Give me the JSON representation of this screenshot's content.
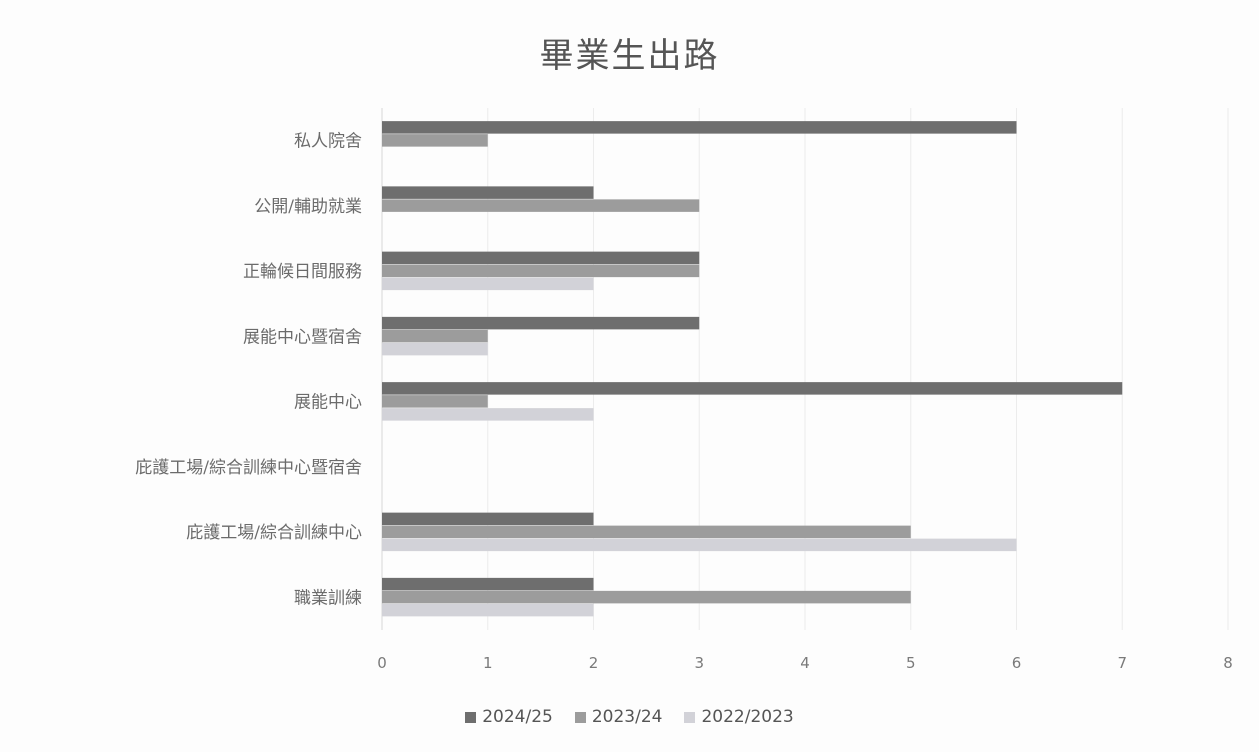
{
  "chart_data": {
    "type": "bar",
    "orientation": "horizontal",
    "title": "畢業生出路",
    "categories": [
      "私人院舍",
      "公開/輔助就業",
      "正輪候日間服務",
      "展能中心暨宿舍",
      "展能中心",
      "庇護工場/綜合訓練中心暨宿舍",
      "庇護工場/綜合訓練中心",
      "職業訓練"
    ],
    "series": [
      {
        "name": "2024/25",
        "color": "#6e6e6e",
        "values": [
          6,
          2,
          3,
          3,
          7,
          0,
          2,
          2
        ]
      },
      {
        "name": "2023/24",
        "color": "#9c9c9c",
        "values": [
          1,
          3,
          3,
          1,
          1,
          0,
          5,
          5
        ]
      },
      {
        "name": "2022/2023",
        "color": "#d2d2d8",
        "values": [
          0,
          0,
          2,
          1,
          2,
          0,
          6,
          2
        ]
      }
    ],
    "xlim": [
      0,
      8
    ],
    "xticks": [
      "0",
      "1",
      "2",
      "3",
      "4",
      "5",
      "6",
      "7",
      "8"
    ],
    "grid": true,
    "legend_position": "bottom"
  }
}
